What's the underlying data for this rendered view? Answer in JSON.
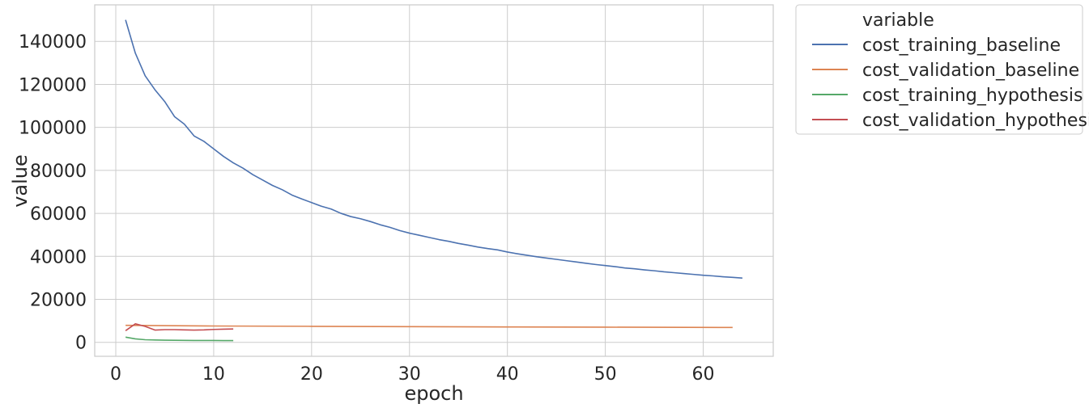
{
  "chart_data": {
    "type": "line",
    "title": "",
    "xlabel": "epoch",
    "ylabel": "value",
    "xlim": [
      -2.15,
      67.15
    ],
    "ylim": [
      -6500,
      157000
    ],
    "x_ticks": [
      0,
      10,
      20,
      30,
      40,
      50,
      60
    ],
    "y_ticks": [
      0,
      20000,
      40000,
      60000,
      80000,
      100000,
      120000,
      140000
    ],
    "grid": true,
    "legend_title": "variable",
    "legend_position": "outside-top-right",
    "series": [
      {
        "name": "cost_training_baseline",
        "color": "#4c72b0",
        "x": [
          1,
          2,
          3,
          4,
          5,
          6,
          7,
          8,
          9,
          10,
          11,
          12,
          13,
          14,
          15,
          16,
          17,
          18,
          19,
          20,
          21,
          22,
          23,
          24,
          25,
          26,
          27,
          28,
          29,
          30,
          31,
          32,
          33,
          34,
          35,
          36,
          37,
          38,
          39,
          40,
          41,
          42,
          43,
          44,
          45,
          46,
          47,
          48,
          49,
          50,
          51,
          52,
          53,
          54,
          55,
          56,
          57,
          58,
          59,
          60,
          61,
          62,
          63,
          64
        ],
        "values": [
          150000,
          134500,
          124000,
          117500,
          112000,
          105000,
          101500,
          96000,
          93500,
          90000,
          86500,
          83500,
          81000,
          78000,
          75500,
          73000,
          71000,
          68500,
          66700,
          65000,
          63300,
          62000,
          60000,
          58500,
          57500,
          56200,
          54700,
          53500,
          52000,
          50800,
          49800,
          48800,
          47800,
          47000,
          46000,
          45200,
          44300,
          43600,
          43000,
          42000,
          41200,
          40500,
          39800,
          39200,
          38600,
          38000,
          37400,
          36800,
          36200,
          35700,
          35200,
          34600,
          34200,
          33700,
          33300,
          32800,
          32400,
          32000,
          31600,
          31200,
          30900,
          30500,
          30200,
          29900
        ]
      },
      {
        "name": "cost_validation_baseline",
        "color": "#dd8452",
        "x": [
          1,
          10,
          20,
          30,
          40,
          50,
          63
        ],
        "values": [
          7900,
          7600,
          7450,
          7300,
          7150,
          7050,
          6900
        ]
      },
      {
        "name": "cost_training_hypothesis",
        "color": "#55a868",
        "x": [
          1,
          2,
          3,
          4,
          5,
          6,
          7,
          8,
          9,
          10,
          11,
          12
        ],
        "values": [
          2400,
          1600,
          1200,
          1100,
          1000,
          950,
          900,
          850,
          850,
          850,
          820,
          800
        ]
      },
      {
        "name": "cost_validation_hypothesis",
        "color": "#c44e52",
        "x": [
          1,
          2,
          3,
          4,
          5,
          6,
          7,
          8,
          9,
          10,
          11,
          12
        ],
        "values": [
          5400,
          8600,
          7400,
          5700,
          5900,
          5900,
          5800,
          5700,
          5800,
          6000,
          6100,
          6200
        ]
      }
    ]
  }
}
